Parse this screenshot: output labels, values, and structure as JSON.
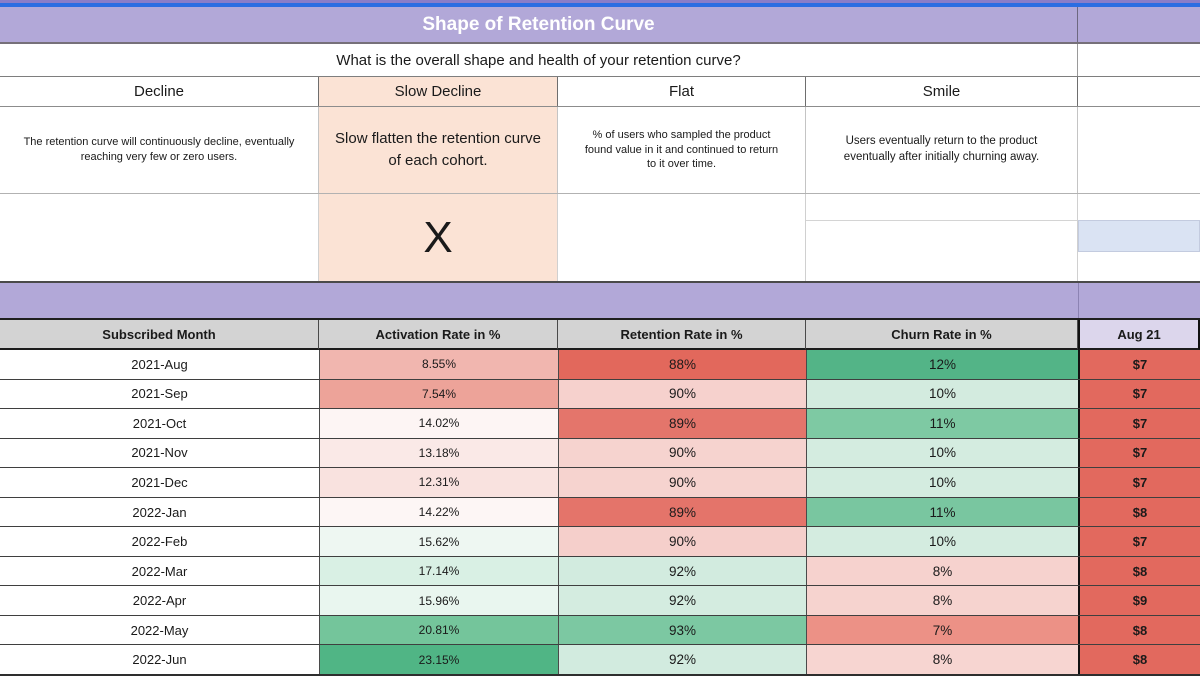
{
  "sheet": {
    "title": "Shape of Retention Curve",
    "question": "What is the overall shape and health of your retention curve?"
  },
  "categories": [
    {
      "label": "Decline",
      "description": "The retention curve will continuously decline, eventually reaching very few or zero users.",
      "selected": false,
      "mark": ""
    },
    {
      "label": "Slow Decline",
      "description": "Slow flatten the retention curve of each cohort.",
      "selected": true,
      "mark": "X"
    },
    {
      "label": "Flat",
      "description": "% of users who sampled the product found value in it and continued to return to it over time.",
      "selected": false,
      "mark": ""
    },
    {
      "label": "Smile",
      "description": "Users eventually return to the product eventually after initially churning away.",
      "selected": false,
      "mark": ""
    }
  ],
  "table": {
    "headers": [
      "Subscribed Month",
      "Activation Rate in %",
      "Retention Rate in %",
      "Churn Rate in %",
      "Aug 21"
    ],
    "rows": [
      {
        "month": "2021-Aug",
        "activation": "8.55%",
        "retention": "88%",
        "churn": "12%",
        "price": "$7",
        "colors": {
          "activation": "#f1b6af",
          "retention": "#e2685c",
          "churn": "#53b487",
          "price": "#e2695e"
        }
      },
      {
        "month": "2021-Sep",
        "activation": "7.54%",
        "retention": "90%",
        "churn": "10%",
        "price": "$7",
        "colors": {
          "activation": "#eda399",
          "retention": "#f6d1cd",
          "churn": "#d3ebdf",
          "price": "#e2695e"
        }
      },
      {
        "month": "2021-Oct",
        "activation": "14.02%",
        "retention": "89%",
        "churn": "11%",
        "price": "$7",
        "colors": {
          "activation": "#fdf5f4",
          "retention": "#e4756b",
          "churn": "#7ec9a3",
          "price": "#e2695e"
        }
      },
      {
        "month": "2021-Nov",
        "activation": "13.18%",
        "retention": "90%",
        "churn": "10%",
        "price": "$7",
        "colors": {
          "activation": "#fae9e7",
          "retention": "#f6d3cf",
          "churn": "#d4ece0",
          "price": "#e2695e"
        }
      },
      {
        "month": "2021-Dec",
        "activation": "12.31%",
        "retention": "90%",
        "churn": "10%",
        "price": "$7",
        "colors": {
          "activation": "#f9e2df",
          "retention": "#f6d3cf",
          "churn": "#d4ece0",
          "price": "#e2695e"
        }
      },
      {
        "month": "2022-Jan",
        "activation": "14.22%",
        "retention": "89%",
        "churn": "11%",
        "price": "$8",
        "colors": {
          "activation": "#fdf6f5",
          "retention": "#e4746a",
          "churn": "#79c6a0",
          "price": "#e2695e"
        }
      },
      {
        "month": "2022-Feb",
        "activation": "15.62%",
        "retention": "90%",
        "churn": "10%",
        "price": "$7",
        "colors": {
          "activation": "#eef7f2",
          "retention": "#f5cfcb",
          "churn": "#d4ece0",
          "price": "#e2695e"
        }
      },
      {
        "month": "2022-Mar",
        "activation": "17.14%",
        "retention": "92%",
        "churn": "8%",
        "price": "$8",
        "colors": {
          "activation": "#d9f0e4",
          "retention": "#d2ebdf",
          "churn": "#f6d2ce",
          "price": "#e2695e"
        }
      },
      {
        "month": "2022-Apr",
        "activation": "15.96%",
        "retention": "92%",
        "churn": "8%",
        "price": "$9",
        "colors": {
          "activation": "#e9f6ef",
          "retention": "#d4ece0",
          "churn": "#f6d3cf",
          "price": "#e2695e"
        }
      },
      {
        "month": "2022-May",
        "activation": "20.81%",
        "retention": "93%",
        "churn": "7%",
        "price": "$8",
        "colors": {
          "activation": "#74c59b",
          "retention": "#7cc8a2",
          "churn": "#ec9186",
          "price": "#e2695e"
        }
      },
      {
        "month": "2022-Jun",
        "activation": "23.15%",
        "retention": "92%",
        "churn": "8%",
        "price": "$8",
        "colors": {
          "activation": "#50b585",
          "retention": "#d2ebdf",
          "churn": "#f7d5d1",
          "price": "#e2695e"
        }
      }
    ]
  },
  "theme": {
    "purple": "#b2a8d8",
    "purple_dark": "#8a7dc8",
    "blue_accent": "#2c6de2",
    "orange_highlight": "#fbe3d5",
    "header_gray": "#d3d3d3",
    "price_header_bg": "#dcd6ec",
    "highlight_blue_cell": "#dae3f3"
  }
}
